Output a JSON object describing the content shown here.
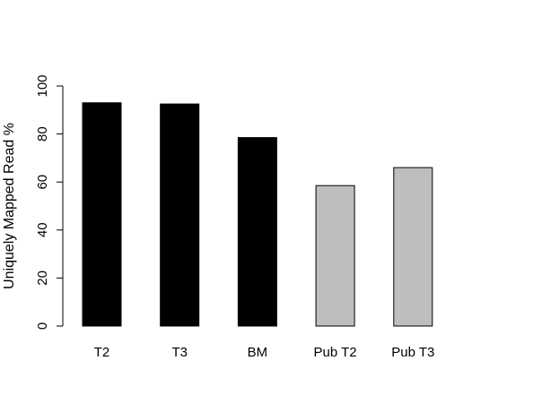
{
  "chart_data": {
    "type": "bar",
    "categories": [
      "T2",
      "T3",
      "BM",
      "Pub T2",
      "Pub T3"
    ],
    "values": [
      93,
      92.5,
      78.5,
      58.5,
      66
    ],
    "colors": [
      "#000000",
      "#000000",
      "#000000",
      "#bebebe",
      "#bebebe"
    ],
    "title": "",
    "xlabel": "",
    "ylabel": "Uniquely Mapped Read %",
    "ylim": [
      0,
      100
    ],
    "yticks": [
      0,
      20,
      40,
      60,
      80,
      100
    ],
    "grid": false,
    "legend": "none"
  }
}
